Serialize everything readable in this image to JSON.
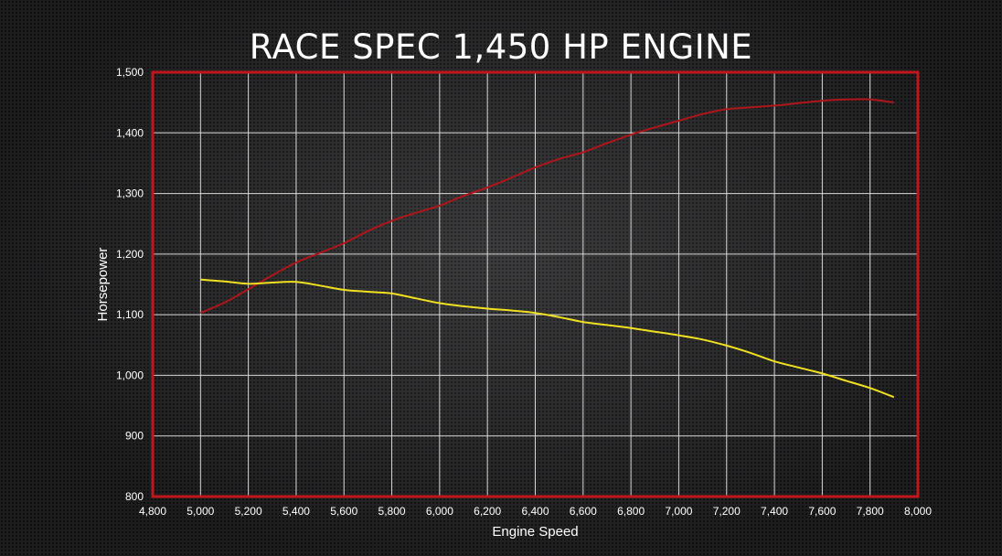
{
  "chart_data": {
    "type": "line",
    "title": "RACE SPEC 1,450 HP ENGINE",
    "xlabel": "Engine Speed",
    "ylabel": "Horsepower",
    "xlim": [
      4800,
      8000
    ],
    "ylim": [
      800,
      1500
    ],
    "x_ticks": [
      "4,800",
      "5,000",
      "5,200",
      "5,400",
      "5,600",
      "5,800",
      "6,000",
      "6,200",
      "6,400",
      "6,600",
      "6,800",
      "7,000",
      "7,200",
      "7,400",
      "7,600",
      "7,800",
      "8,000"
    ],
    "y_ticks": [
      "800",
      "900",
      "1,000",
      "1,100",
      "1,200",
      "1,300",
      "1,400",
      "1,500"
    ],
    "grid": true,
    "series": [
      {
        "color": "#b0151a",
        "x": [
          5000,
          5100,
          5200,
          5300,
          5400,
          5500,
          5600,
          5700,
          5800,
          5900,
          6000,
          6100,
          6200,
          6300,
          6400,
          6500,
          6600,
          6700,
          6800,
          6900,
          7000,
          7100,
          7200,
          7300,
          7400,
          7500,
          7600,
          7700,
          7800,
          7900
        ],
        "y": [
          1103,
          1120,
          1142,
          1165,
          1186,
          1202,
          1218,
          1238,
          1255,
          1268,
          1280,
          1296,
          1310,
          1326,
          1343,
          1357,
          1368,
          1383,
          1397,
          1409,
          1420,
          1431,
          1439,
          1442,
          1445,
          1449,
          1453,
          1455,
          1455,
          1450
        ]
      },
      {
        "color": "#f0e020",
        "x": [
          5000,
          5100,
          5200,
          5300,
          5400,
          5500,
          5600,
          5700,
          5800,
          5900,
          6000,
          6100,
          6200,
          6300,
          6400,
          6500,
          6600,
          6700,
          6800,
          6900,
          7000,
          7100,
          7200,
          7300,
          7400,
          7500,
          7600,
          7700,
          7800,
          7900
        ],
        "y": [
          1158,
          1155,
          1151,
          1153,
          1154,
          1148,
          1141,
          1138,
          1135,
          1127,
          1119,
          1114,
          1110,
          1107,
          1103,
          1096,
          1088,
          1083,
          1078,
          1072,
          1066,
          1059,
          1049,
          1037,
          1023,
          1013,
          1003,
          991,
          979,
          964
        ]
      }
    ]
  }
}
